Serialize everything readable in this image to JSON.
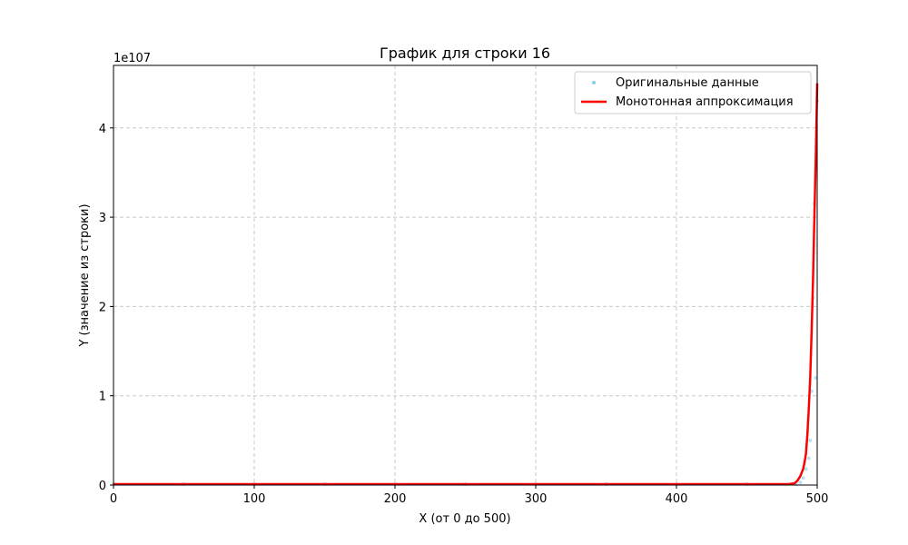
{
  "chart_data": {
    "type": "line",
    "title": "График для строки 16",
    "xlabel": "X (от 0 до 500)",
    "ylabel": "Y (значение из строки)",
    "y_offset_label": "1e107",
    "xlim": [
      0,
      500
    ],
    "ylim": [
      0,
      4.7
    ],
    "x_ticks": [
      0,
      100,
      200,
      300,
      400,
      500
    ],
    "y_ticks": [
      0,
      1,
      2,
      3,
      4
    ],
    "grid": true,
    "legend_position": "top-right",
    "series": [
      {
        "name": "Оригинальные данные",
        "kind": "scatter",
        "color": "#87ceeb",
        "x": [
          0,
          50,
          100,
          150,
          200,
          250,
          300,
          350,
          400,
          450,
          485,
          488,
          490,
          492,
          494,
          495,
          496,
          497,
          498,
          499,
          500
        ],
        "y": [
          0.01,
          0.01,
          0.01,
          0.01,
          0.01,
          0.01,
          0.01,
          0.01,
          0.01,
          0.01,
          0.01,
          0.03,
          0.08,
          0.18,
          0.3,
          0.5,
          1.05,
          2.1,
          3.15,
          1.2,
          4.3
        ]
      },
      {
        "name": "Монотонная аппроксимация",
        "kind": "line",
        "color": "#ff0000",
        "x": [
          0,
          100,
          200,
          300,
          400,
          480,
          484,
          486,
          488,
          490,
          491,
          492,
          493,
          494,
          495,
          496,
          497,
          498,
          499,
          500
        ],
        "y": [
          0.01,
          0.01,
          0.01,
          0.01,
          0.01,
          0.01,
          0.02,
          0.05,
          0.1,
          0.18,
          0.25,
          0.35,
          0.55,
          0.85,
          1.2,
          1.7,
          2.3,
          3.0,
          3.7,
          4.5
        ]
      }
    ]
  }
}
